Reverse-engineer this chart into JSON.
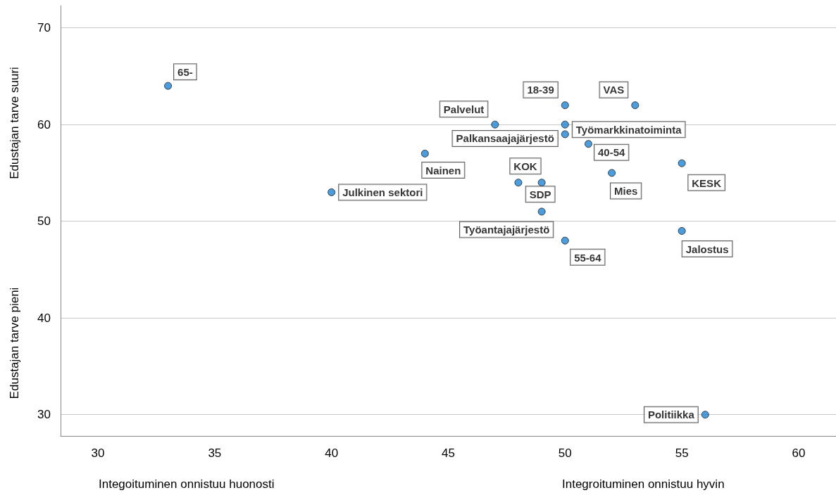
{
  "chart_data": {
    "type": "scatter",
    "xlabel": "Integoituminen onnistuu huonosti",
    "ylabel": "Edustajan tarve pieni",
    "annotations": [
      "Integroituminen onnistuu hyvin",
      "Edustajan tarve suuri"
    ],
    "series": [
      {
        "name": "65-",
        "color": "#1f84d4",
        "x": [
          33
        ],
        "values": [
          64
        ]
      },
      {
        "name": "Palvelut",
        "color": "#1f84d4",
        "x": [
          47
        ],
        "values": [
          60
        ]
      },
      {
        "name": "18-39",
        "color": "#1f84d4",
        "x": [
          50
        ],
        "values": [
          62
        ]
      },
      {
        "name": "VAS",
        "color": "#1f84d4",
        "x": [
          53
        ],
        "values": [
          62
        ]
      },
      {
        "name": "Työmarkkinatoiminta",
        "color": "#1f84d4",
        "x": [
          50
        ],
        "values": [
          60
        ]
      },
      {
        "name": "Palkansaajajärjestö",
        "color": "#1f84d4",
        "x": [
          50
        ],
        "values": [
          59
        ]
      },
      {
        "name": "40-54",
        "color": "#1f84d4",
        "x": [
          51
        ],
        "values": [
          58
        ]
      },
      {
        "name": "Mies",
        "color": "#1f84d4",
        "x": [
          52
        ],
        "values": [
          55
        ]
      },
      {
        "name": "Nainen",
        "color": "#1f84d4",
        "x": [
          44
        ],
        "values": [
          57
        ]
      },
      {
        "name": "Julkinen sektori",
        "color": "#1f84d4",
        "x": [
          40
        ],
        "values": [
          53
        ]
      },
      {
        "name": "KOK",
        "color": "#1f84d4",
        "x": [
          48
        ],
        "values": [
          54
        ]
      },
      {
        "name": "SDP",
        "color": "#1f84d4",
        "x": [
          49
        ],
        "values": [
          54
        ]
      },
      {
        "name": "Työantajajärjestö",
        "color": "#1f84d4",
        "x": [
          49
        ],
        "values": [
          51
        ]
      },
      {
        "name": "55-64",
        "color": "#1f84d4",
        "x": [
          50
        ],
        "values": [
          48
        ]
      },
      {
        "name": "KESK",
        "color": "#1f84d4",
        "x": [
          55
        ],
        "values": [
          56
        ]
      },
      {
        "name": "Jalostus",
        "color": "#1f84d4",
        "x": [
          55
        ],
        "values": [
          49
        ]
      },
      {
        "name": "Politiikka",
        "color": "#1f84d4",
        "x": [
          56
        ],
        "values": [
          30
        ]
      }
    ],
    "marker": "circle",
    "xlim": [
      28.4,
      61.6
    ],
    "xticks": [
      30,
      35,
      40,
      45,
      50,
      55,
      60
    ],
    "ylim": [
      27.8,
      72.3
    ],
    "yticks": [
      30,
      40,
      50,
      60,
      70
    ],
    "grid": "y"
  }
}
